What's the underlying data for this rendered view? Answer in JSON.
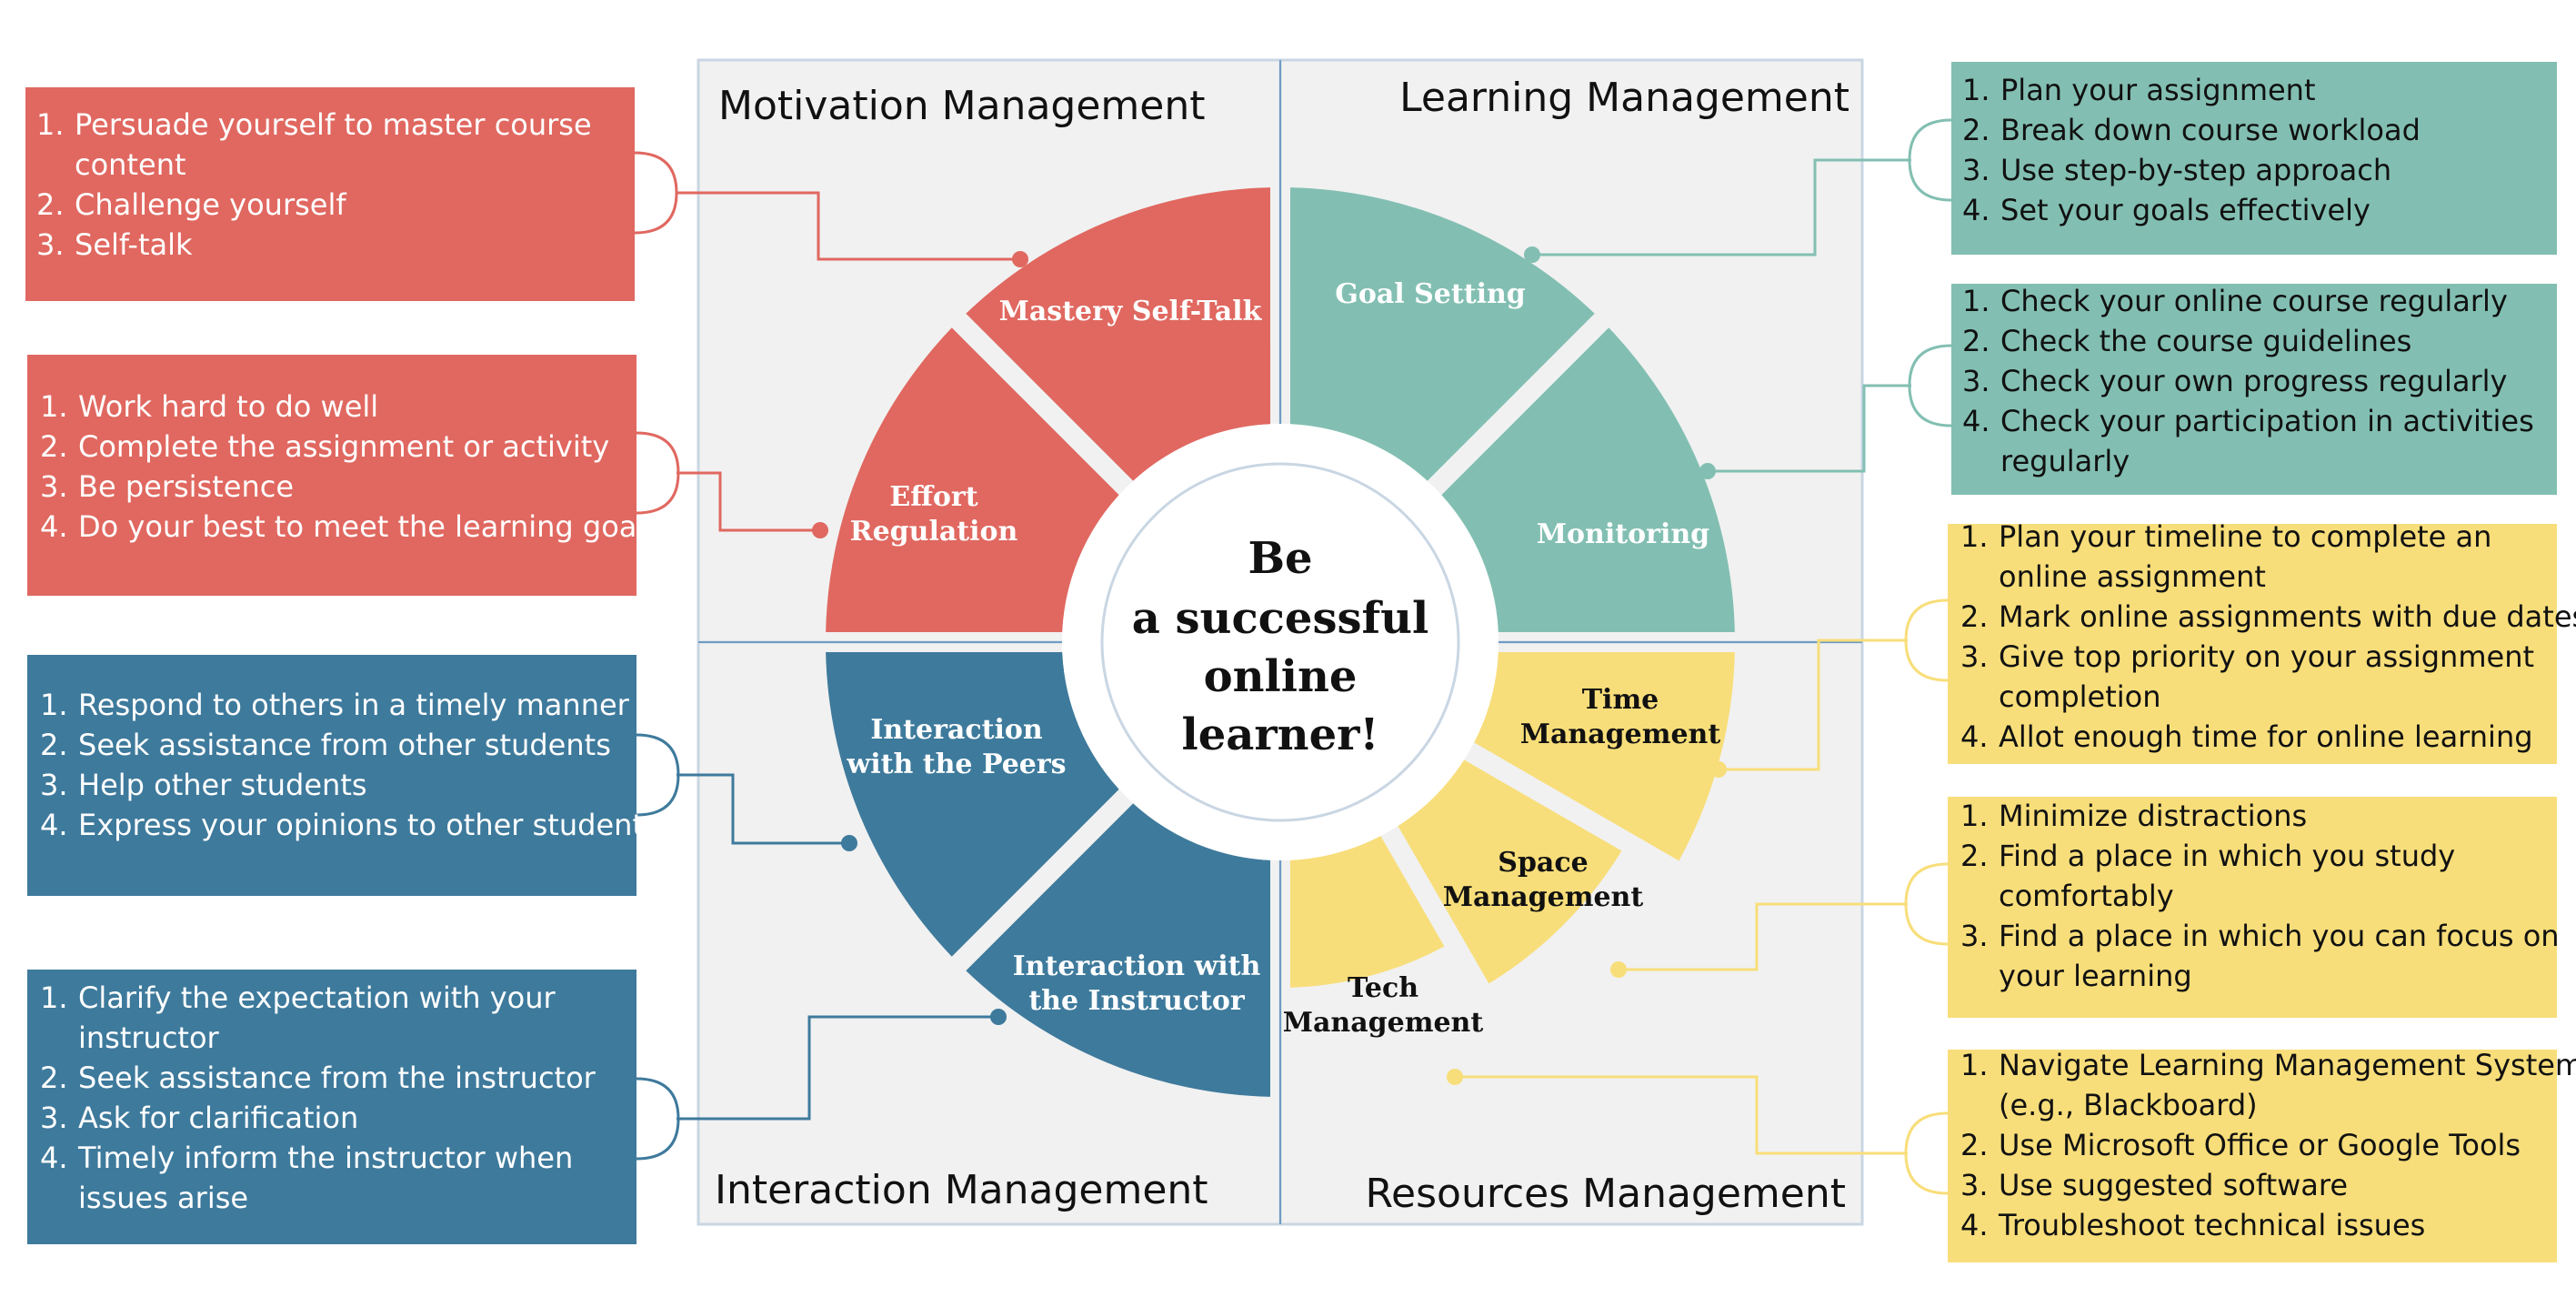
{
  "colors": {
    "motivation": "#E06860",
    "learning": "#82BFB2",
    "interaction": "#3E7A9C",
    "resources": "#F8DE7A",
    "panel": "#F1F1F1",
    "panel_border": "#C9D6E3"
  },
  "center": {
    "lines": [
      "Be",
      "a successful",
      "online",
      "learner!"
    ]
  },
  "quadrants": {
    "motivation": "Motivation Management",
    "learning": "Learning Management",
    "interaction": "Interaction Management",
    "resources": "Resources Management"
  },
  "wedges": {
    "mastery": [
      "Mastery Self-Talk"
    ],
    "effort": [
      "Effort",
      "Regulation"
    ],
    "goal": [
      "Goal Setting"
    ],
    "monitoring": [
      "Monitoring"
    ],
    "peers": [
      "Interaction",
      "with the Peers"
    ],
    "instructor": [
      "Interaction with",
      "the Instructor"
    ],
    "time": [
      "Time",
      "Management"
    ],
    "space": [
      "Space",
      "Management"
    ],
    "tech": [
      "Tech",
      "Management"
    ]
  },
  "boxes": {
    "mastery": [
      {
        "num": "1.",
        "lines": [
          "Persuade yourself to master course",
          "content"
        ]
      },
      {
        "num": "2.",
        "lines": [
          "Challenge yourself"
        ]
      },
      {
        "num": "3.",
        "lines": [
          "Self-talk"
        ]
      }
    ],
    "effort": [
      {
        "num": "1.",
        "lines": [
          "Work hard to do well"
        ]
      },
      {
        "num": "2.",
        "lines": [
          "Complete the assignment or activity"
        ]
      },
      {
        "num": "3.",
        "lines": [
          "Be persistence"
        ]
      },
      {
        "num": "4.",
        "lines": [
          "Do your best to meet the learning goals"
        ]
      }
    ],
    "peers": [
      {
        "num": "1.",
        "lines": [
          "Respond to others in a timely manner"
        ]
      },
      {
        "num": "2.",
        "lines": [
          "Seek assistance from other students"
        ]
      },
      {
        "num": "3.",
        "lines": [
          "Help other students"
        ]
      },
      {
        "num": "4.",
        "lines": [
          "Express your opinions to other students"
        ]
      }
    ],
    "instructor": [
      {
        "num": "1.",
        "lines": [
          "Clarify the expectation with your",
          "instructor"
        ]
      },
      {
        "num": "2.",
        "lines": [
          "Seek assistance from the instructor"
        ]
      },
      {
        "num": "3.",
        "lines": [
          "Ask for clarification"
        ]
      },
      {
        "num": "4.",
        "lines": [
          "Timely inform the instructor when",
          "issues arise"
        ]
      }
    ],
    "goal": [
      {
        "num": "1.",
        "lines": [
          "Plan your assignment"
        ]
      },
      {
        "num": "2.",
        "lines": [
          "Break down course workload"
        ]
      },
      {
        "num": "3.",
        "lines": [
          "Use step-by-step approach"
        ]
      },
      {
        "num": "4.",
        "lines": [
          "Set your goals effectively"
        ]
      }
    ],
    "monitoring": [
      {
        "num": "1.",
        "lines": [
          "Check your online course regularly"
        ]
      },
      {
        "num": "2.",
        "lines": [
          "Check the course guidelines"
        ]
      },
      {
        "num": "3.",
        "lines": [
          "Check your own progress regularly"
        ]
      },
      {
        "num": "4.",
        "lines": [
          "Check your participation in activities",
          "regularly"
        ]
      }
    ],
    "time": [
      {
        "num": "1.",
        "lines": [
          "Plan your timeline to complete an",
          "online assignment"
        ]
      },
      {
        "num": "2.",
        "lines": [
          "Mark online assignments with due dates"
        ]
      },
      {
        "num": "3.",
        "lines": [
          "Give top priority on your assignment",
          "completion"
        ]
      },
      {
        "num": "4.",
        "lines": [
          "Allot enough time for online learning"
        ]
      }
    ],
    "space": [
      {
        "num": "1.",
        "lines": [
          "Minimize distractions"
        ]
      },
      {
        "num": "2.",
        "lines": [
          "Find a place in which you study",
          "comfortably"
        ]
      },
      {
        "num": "3.",
        "lines": [
          "Find a place in which you can focus on",
          "your learning"
        ]
      }
    ],
    "tech": [
      {
        "num": "1.",
        "lines": [
          "Navigate Learning Management System",
          "(e.g., Blackboard)"
        ]
      },
      {
        "num": "2.",
        "lines": [
          "Use Microsoft Office or Google Tools"
        ]
      },
      {
        "num": "3.",
        "lines": [
          "Use suggested software"
        ]
      },
      {
        "num": "4.",
        "lines": [
          "Troubleshoot technical issues"
        ]
      }
    ]
  }
}
